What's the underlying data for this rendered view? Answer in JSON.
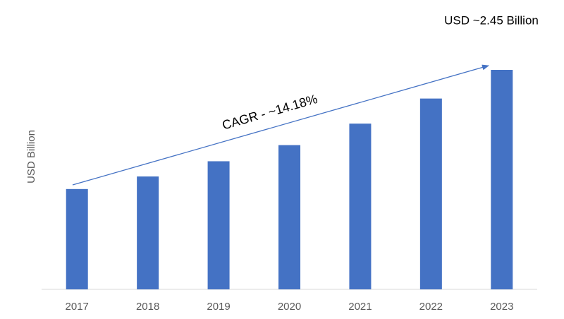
{
  "chart_data": {
    "type": "bar",
    "ylabel": "USD Billion",
    "annotations": [
      "USD ~2.45 Billion",
      "CAGR - ~14.18%"
    ],
    "categories": [
      "2017",
      "2018",
      "2019",
      "2020",
      "2021",
      "2022",
      "2023"
    ],
    "values": [
      1.12,
      1.26,
      1.43,
      1.61,
      1.85,
      2.13,
      2.45
    ],
    "color": "#4472c4",
    "grid": false
  }
}
